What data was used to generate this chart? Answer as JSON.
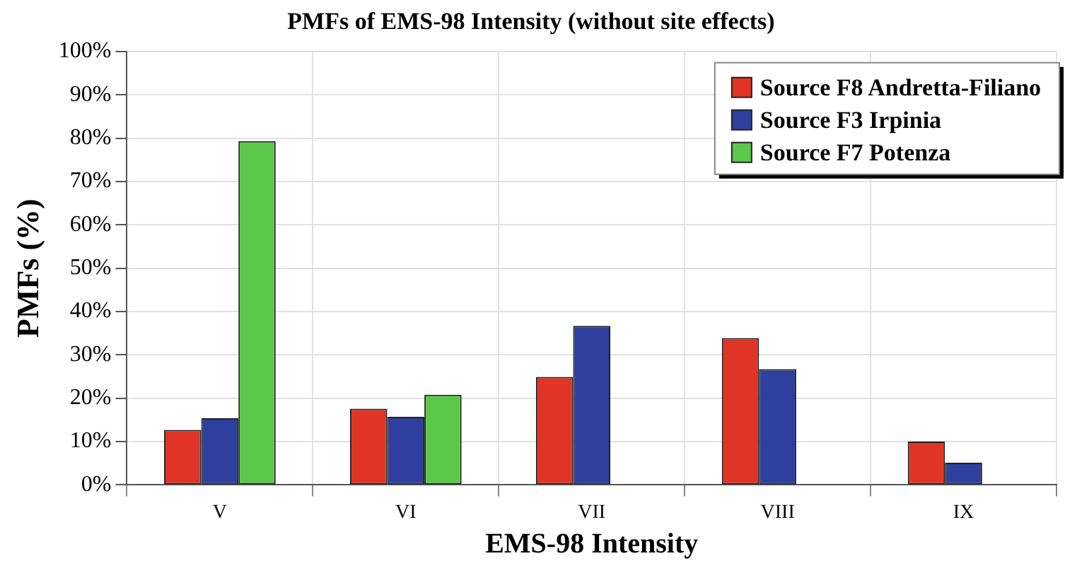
{
  "chart_data": {
    "type": "bar",
    "title": "PMFs of EMS-98 Intensity (without site effects)",
    "xlabel": "EMS-98 Intensity",
    "ylabel": "PMFs (%)",
    "categories": [
      "V",
      "VI",
      "VII",
      "VIII",
      "IX"
    ],
    "series": [
      {
        "name": "Source F8 Andretta-Filiano",
        "color": "#e03426",
        "values": [
          12.7,
          17.6,
          24.9,
          33.9,
          10.0
        ]
      },
      {
        "name": "Source F3 Irpinia",
        "color": "#2f3f9e",
        "values": [
          15.4,
          15.7,
          36.7,
          26.7,
          5.1
        ]
      },
      {
        "name": "Source F7 Potenza",
        "color": "#5cc84a",
        "values": [
          79.3,
          20.8,
          null,
          null,
          null
        ]
      }
    ],
    "ylim": [
      0,
      100
    ],
    "yticks": [
      {
        "value": 0,
        "label": "0%"
      },
      {
        "value": 10,
        "label": "10%"
      },
      {
        "value": 20,
        "label": "20%"
      },
      {
        "value": 30,
        "label": "30%"
      },
      {
        "value": 40,
        "label": "40%"
      },
      {
        "value": 50,
        "label": "50%"
      },
      {
        "value": 60,
        "label": "60%"
      },
      {
        "value": 70,
        "label": "70%"
      },
      {
        "value": 80,
        "label": "80%"
      },
      {
        "value": 90,
        "label": "90%"
      },
      {
        "value": 100,
        "label": "100%"
      }
    ],
    "grid": true,
    "legend": "top right"
  }
}
